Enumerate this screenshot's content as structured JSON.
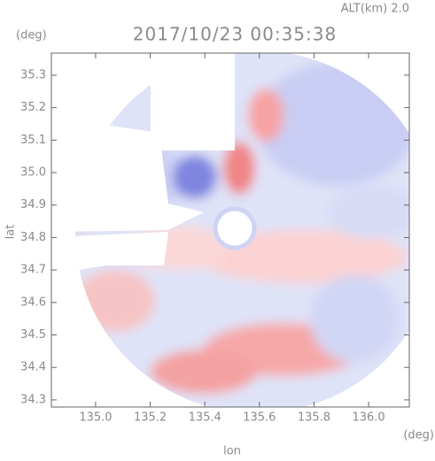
{
  "chart_data": {
    "type": "radar-map",
    "title": "2017/10/23 00:35:38",
    "subtitle": "ALT(km) 2.0",
    "x_label": "lon",
    "y_label": "lat",
    "x_unit": "(deg)",
    "y_unit": "(deg)",
    "xlim": [
      134.838,
      136.149
    ],
    "ylim": [
      34.278,
      35.368
    ],
    "xticks": [
      {
        "value": 135,
        "label": "135.0"
      },
      135.2,
      135.4,
      135.6,
      135.8,
      {
        "value": 136,
        "label": "136.0"
      }
    ],
    "yticks": [
      34.3,
      34.4,
      34.5,
      34.6,
      34.7,
      34.8,
      34.9,
      {
        "value": 35,
        "label": "35.0"
      },
      35.1,
      35.2,
      35.3
    ]
  }
}
